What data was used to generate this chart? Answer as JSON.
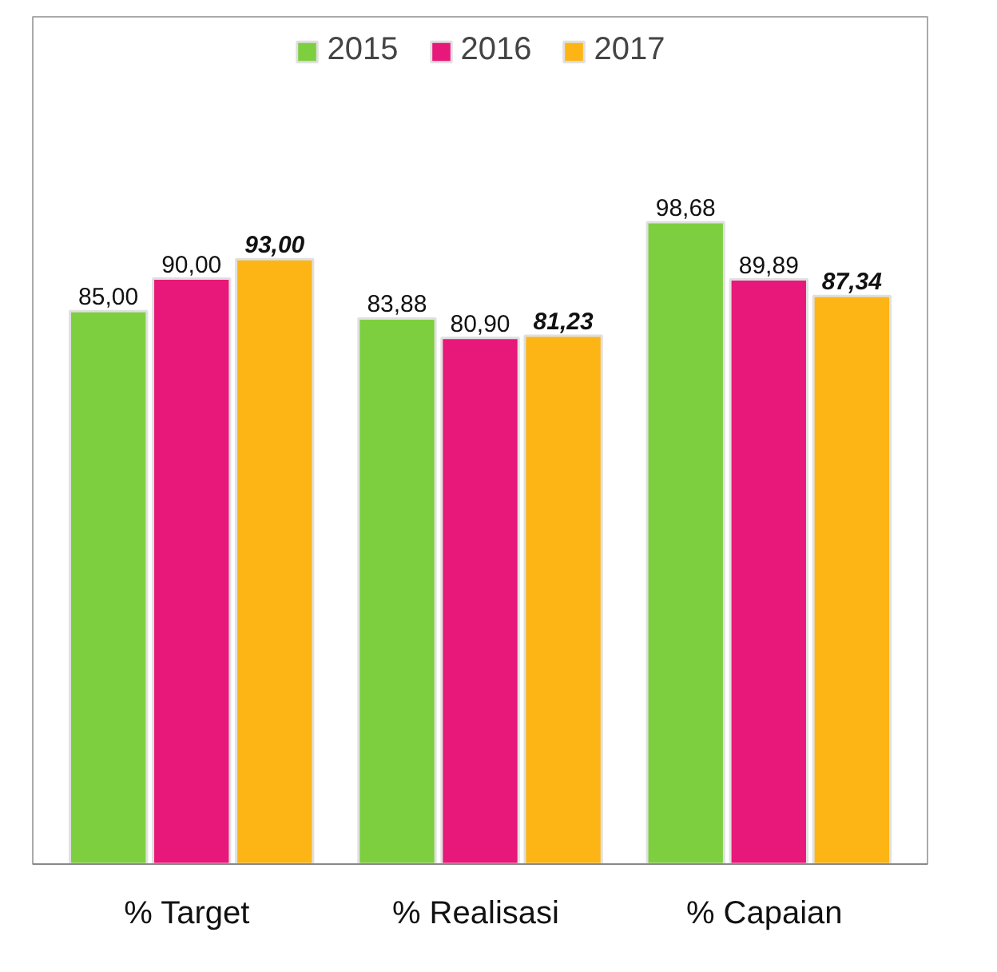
{
  "chart_data": {
    "type": "bar",
    "categories": [
      "%  Target",
      "%  Realisasi",
      "%  Capaian"
    ],
    "series": [
      {
        "name": "2015",
        "color": "#7dcf3f",
        "values": [
          85.0,
          83.88,
          98.68
        ],
        "value_labels": [
          "85,00",
          "83,88",
          "98,68"
        ]
      },
      {
        "name": "2016",
        "color": "#e8177a",
        "values": [
          90.0,
          80.9,
          89.89
        ],
        "value_labels": [
          "90,00",
          "80,90",
          "89,89"
        ]
      },
      {
        "name": "2017",
        "color": "#fdb515",
        "values": [
          93.0,
          81.23,
          87.34
        ],
        "value_labels": [
          "93,00",
          "81,23",
          "87,34"
        ]
      }
    ],
    "legend": "top",
    "grid": false
  }
}
